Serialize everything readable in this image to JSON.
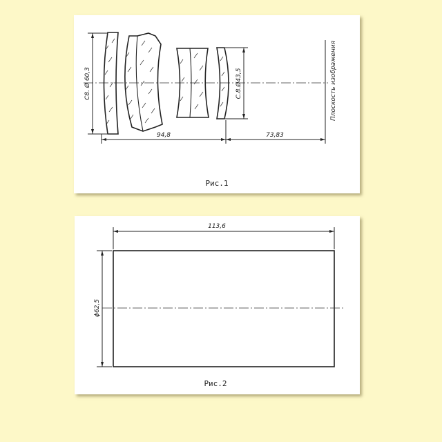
{
  "figure1": {
    "diameter_front_label": "C8. Ø 60,3",
    "diameter_rear_label": "C.8.Ø43,5",
    "dimension_lens_length": "94,8",
    "dimension_back_focus": "73,83",
    "image_plane_label": "Плоскость изображения",
    "caption": "Рис.1"
  },
  "figure2": {
    "dimension_length": "113,6",
    "dimension_diameter": "ϕ62,5",
    "caption": "Рис.2"
  },
  "colors": {
    "background": "#fdf8c8",
    "paper": "#ffffff",
    "ink": "#222222"
  }
}
